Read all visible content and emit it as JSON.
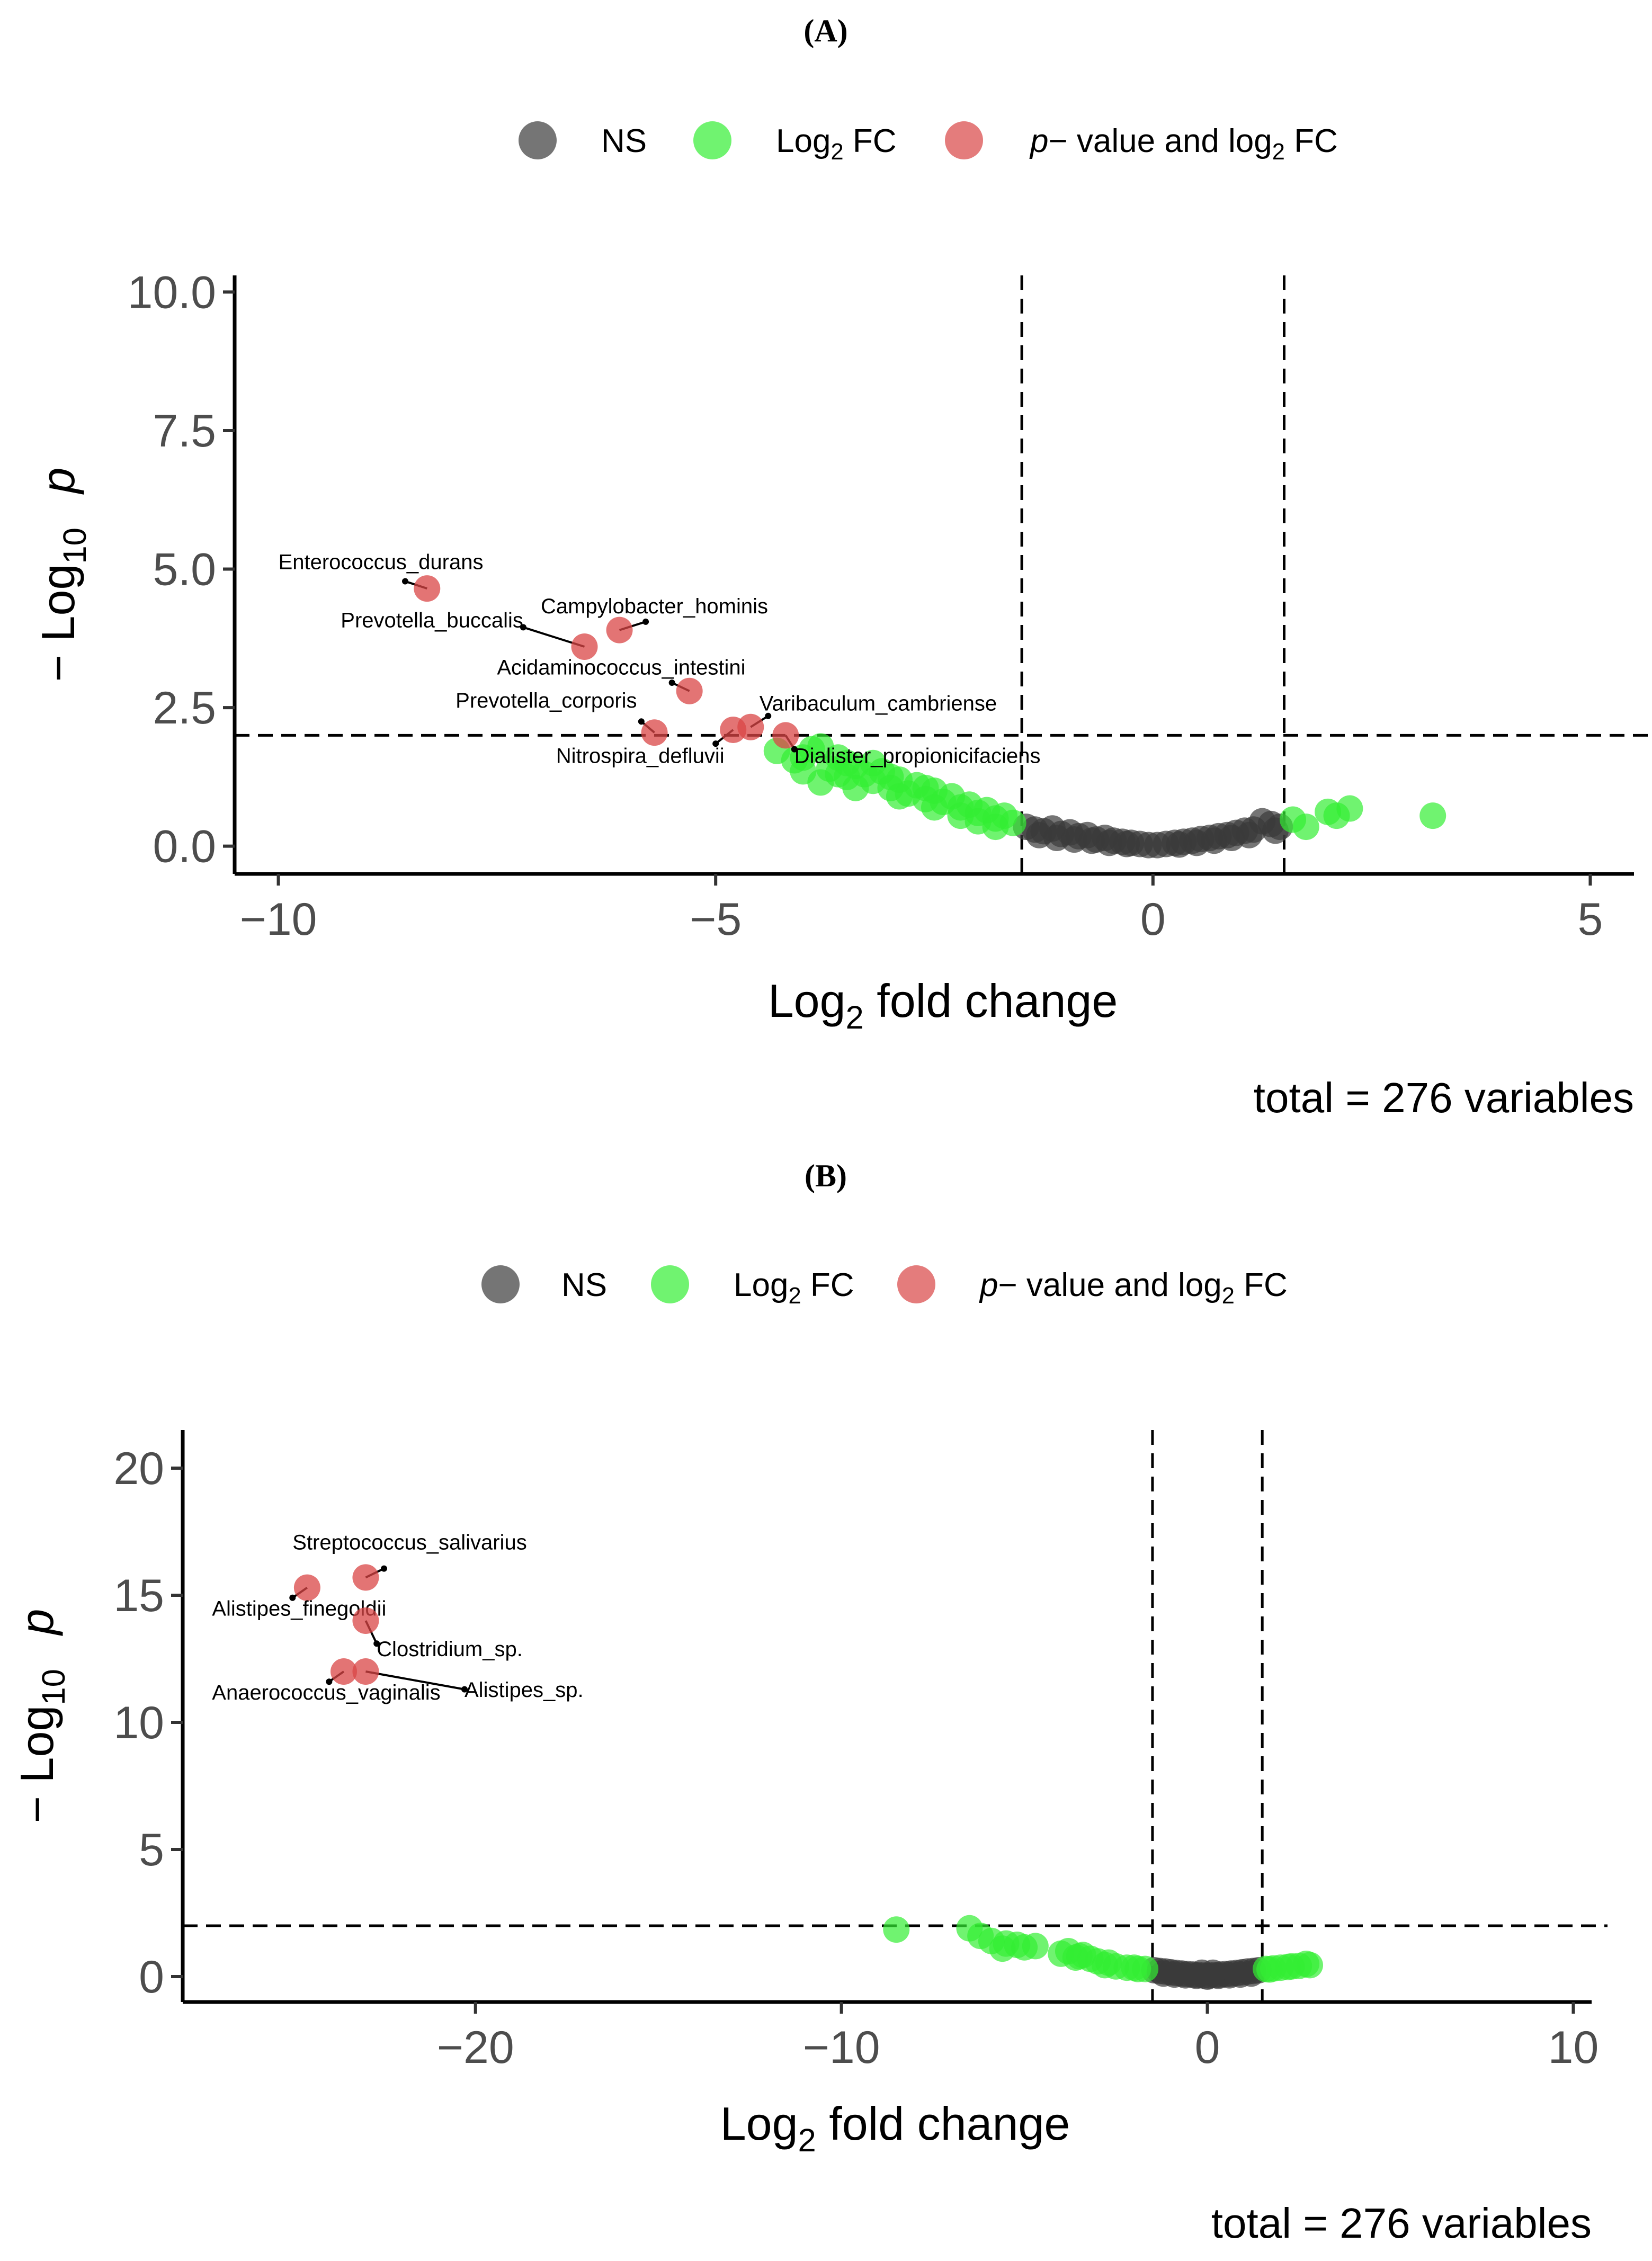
{
  "chart_data": [
    {
      "panel_label": "(A)",
      "type": "scatter",
      "subtype": "volcano",
      "legend": {
        "placement": "top",
        "entries": [
          {
            "key": "ns",
            "label": "NS",
            "color": "#3a3a3a"
          },
          {
            "key": "fc",
            "label": "Log",
            "sub": "2",
            "label_after": " FC",
            "color": "#33ee33"
          },
          {
            "key": "both",
            "label_italic": "p",
            "label": "− value and log",
            "sub": "2",
            "label_after": " FC",
            "color": "#d94545"
          }
        ]
      },
      "xlabel": "Log",
      "xlabel_sub": "2",
      "xlabel_after": " fold change",
      "ylabel": "− Log",
      "ylabel_sub": "10",
      "ylabel_after": "p",
      "xlim": [
        -10.5,
        5.5
      ],
      "ylim": [
        -0.5,
        10.3
      ],
      "xticks": [
        -10,
        -5,
        0,
        5
      ],
      "xtick_labels": [
        "−10",
        "−5",
        "0",
        "5"
      ],
      "yticks": [
        0,
        2.5,
        5,
        7.5,
        10
      ],
      "ytick_labels": [
        "0.0",
        "2.5",
        "5.0",
        "7.5",
        "10.0"
      ],
      "vlines": [
        -1.5,
        1.5
      ],
      "hline": 2,
      "caption": "total = 276 variables",
      "significant_points": [
        {
          "x": -8.3,
          "y": 4.65,
          "label": "Enterococcus_durans",
          "label_x": -10.0,
          "label_y": 5.0,
          "anchor": "start",
          "arrow_end_x": -8.55,
          "arrow_end_y": 4.78
        },
        {
          "x": -6.1,
          "y": 3.9,
          "label": "Campylobacter_hominis",
          "label_x": -7.0,
          "label_y": 4.2,
          "anchor": "start",
          "arrow_end_x": -5.8,
          "arrow_end_y": 4.05
        },
        {
          "x": -6.5,
          "y": 3.6,
          "label": "Prevotella_buccalis",
          "label_x": -7.2,
          "label_y": 3.95,
          "anchor": "end",
          "arrow_end_x": -7.2,
          "arrow_end_y": 3.95
        },
        {
          "x": -5.3,
          "y": 2.8,
          "label": "Acidaminococcus_intestini",
          "label_x": -7.5,
          "label_y": 3.1,
          "anchor": "start",
          "arrow_end_x": -5.5,
          "arrow_end_y": 2.95
        },
        {
          "x": -5.7,
          "y": 2.05,
          "label": "Prevotella_corporis",
          "label_x": -5.9,
          "label_y": 2.5,
          "anchor": "end",
          "arrow_end_x": -5.85,
          "arrow_end_y": 2.25
        },
        {
          "x": -4.8,
          "y": 2.1,
          "label": "Nitrospira_defluvii",
          "label_x": -4.9,
          "label_y": 1.5,
          "anchor": "end",
          "arrow_end_x": -5.0,
          "arrow_end_y": 1.85
        },
        {
          "x": -4.6,
          "y": 2.15,
          "label": "Varibaculum_cambriense",
          "label_x": -4.5,
          "label_y": 2.45,
          "anchor": "start",
          "arrow_end_x": -4.4,
          "arrow_end_y": 2.35
        },
        {
          "x": -4.2,
          "y": 2.0,
          "label": "Dialister_propionicifaciens",
          "label_x": -4.1,
          "label_y": 1.5,
          "anchor": "start",
          "arrow_end_x": -4.1,
          "arrow_end_y": 1.75
        }
      ],
      "fc_points": [
        [
          -4.3,
          1.72
        ],
        [
          -4.1,
          1.55
        ],
        [
          -4.0,
          1.35
        ],
        [
          -3.9,
          1.75
        ],
        [
          -3.8,
          1.8
        ],
        [
          -3.7,
          1.4
        ],
        [
          -3.6,
          1.6
        ],
        [
          -3.5,
          1.5
        ],
        [
          -3.5,
          1.25
        ],
        [
          -3.4,
          1.45
        ],
        [
          -3.3,
          1.3
        ],
        [
          -3.2,
          1.18
        ],
        [
          -3.1,
          1.35
        ],
        [
          -3.0,
          1.05
        ],
        [
          -2.9,
          1.2
        ],
        [
          -2.8,
          0.95
        ],
        [
          -2.7,
          1.1
        ],
        [
          -2.6,
          0.85
        ],
        [
          -2.5,
          1.0
        ],
        [
          -2.4,
          0.8
        ],
        [
          -2.3,
          0.9
        ],
        [
          -2.2,
          0.7
        ],
        [
          -2.1,
          0.75
        ],
        [
          -2.0,
          0.6
        ],
        [
          -1.9,
          0.65
        ],
        [
          -1.8,
          0.5
        ],
        [
          -1.7,
          0.55
        ],
        [
          -1.6,
          0.42
        ],
        [
          -3.8,
          1.15
        ],
        [
          -3.4,
          1.05
        ],
        [
          -2.9,
          0.9
        ],
        [
          -2.5,
          0.7
        ],
        [
          -2.0,
          0.45
        ],
        [
          -3.2,
          1.5
        ],
        [
          -2.6,
          1.05
        ],
        [
          -1.8,
          0.35
        ],
        [
          -4.0,
          1.6
        ],
        [
          -3.6,
          1.3
        ],
        [
          -3.0,
          1.25
        ],
        [
          -2.2,
          0.55
        ],
        [
          1.6,
          0.48
        ],
        [
          1.75,
          0.35
        ],
        [
          2.0,
          0.62
        ],
        [
          2.1,
          0.55
        ],
        [
          2.25,
          0.68
        ],
        [
          3.2,
          0.55
        ]
      ],
      "ns_points": [
        [
          -1.45,
          0.35
        ],
        [
          -1.35,
          0.3
        ],
        [
          -1.25,
          0.27
        ],
        [
          -1.15,
          0.32
        ],
        [
          -1.05,
          0.22
        ],
        [
          -0.95,
          0.25
        ],
        [
          -0.85,
          0.18
        ],
        [
          -0.75,
          0.2
        ],
        [
          -0.65,
          0.12
        ],
        [
          -0.55,
          0.15
        ],
        [
          -0.45,
          0.1
        ],
        [
          -0.35,
          0.08
        ],
        [
          -0.25,
          0.06
        ],
        [
          -0.15,
          0.04
        ],
        [
          -0.05,
          0.02
        ],
        [
          0.05,
          0.02
        ],
        [
          0.15,
          0.04
        ],
        [
          0.25,
          0.06
        ],
        [
          0.35,
          0.08
        ],
        [
          0.45,
          0.1
        ],
        [
          0.55,
          0.13
        ],
        [
          0.65,
          0.15
        ],
        [
          0.75,
          0.18
        ],
        [
          0.85,
          0.2
        ],
        [
          0.95,
          0.24
        ],
        [
          1.05,
          0.28
        ],
        [
          1.15,
          0.3
        ],
        [
          1.25,
          0.45
        ],
        [
          1.35,
          0.4
        ],
        [
          1.45,
          0.35
        ],
        [
          -1.3,
          0.2
        ],
        [
          -1.1,
          0.15
        ],
        [
          -0.9,
          0.12
        ],
        [
          -0.7,
          0.1
        ],
        [
          -0.5,
          0.06
        ],
        [
          -0.3,
          0.04
        ],
        [
          0.3,
          0.03
        ],
        [
          0.5,
          0.06
        ],
        [
          0.7,
          0.1
        ],
        [
          0.9,
          0.15
        ],
        [
          1.1,
          0.2
        ],
        [
          1.4,
          0.28
        ]
      ]
    },
    {
      "panel_label": "(B)",
      "type": "scatter",
      "subtype": "volcano",
      "legend": {
        "placement": "top",
        "entries": [
          {
            "key": "ns",
            "label": "NS",
            "color": "#3a3a3a"
          },
          {
            "key": "fc",
            "label": "Log",
            "sub": "2",
            "label_after": " FC",
            "color": "#33ee33"
          },
          {
            "key": "both",
            "label_italic": "p",
            "label": "− value and log",
            "sub": "2",
            "label_after": " FC",
            "color": "#d94545"
          }
        ]
      },
      "xlabel": "Log",
      "xlabel_sub": "2",
      "xlabel_after": " fold change",
      "ylabel": "− Log",
      "ylabel_sub": "10",
      "ylabel_after": "p",
      "xlim": [
        -28,
        10.5
      ],
      "ylim": [
        -1,
        21.5
      ],
      "xticks": [
        -20,
        -10,
        0,
        10
      ],
      "xtick_labels": [
        "−20",
        "−10",
        "0",
        "10"
      ],
      "yticks": [
        0,
        5,
        10,
        15,
        20
      ],
      "ytick_labels": [
        "0",
        "5",
        "10",
        "15",
        "20"
      ],
      "vlines": [
        -1.5,
        1.5
      ],
      "hline": 2,
      "caption": "total = 276 variables",
      "significant_points": [
        {
          "x": -23.0,
          "y": 15.7,
          "label": "Streptococcus_salivarius",
          "label_x": -25.0,
          "label_y": 16.8,
          "anchor": "start",
          "arrow_end_x": -22.5,
          "arrow_end_y": 16.05
        },
        {
          "x": -24.6,
          "y": 15.3,
          "label": "Alistipes_finegoldii",
          "label_x": -27.2,
          "label_y": 14.2,
          "anchor": "start",
          "arrow_end_x": -25.0,
          "arrow_end_y": 14.9
        },
        {
          "x": -23.0,
          "y": 14.0,
          "label": "Clostridium_sp.",
          "label_x": -22.7,
          "label_y": 12.6,
          "anchor": "start",
          "arrow_end_x": -22.7,
          "arrow_end_y": 13.1
        },
        {
          "x": -23.6,
          "y": 12.0,
          "label": "Anaerococcus_vaginalis",
          "label_x": -27.2,
          "label_y": 10.9,
          "anchor": "start",
          "arrow_end_x": -24.0,
          "arrow_end_y": 11.6
        },
        {
          "x": -23.0,
          "y": 12.0,
          "label": "Alistipes_sp.",
          "label_x": -20.3,
          "label_y": 11.0,
          "anchor": "start",
          "arrow_end_x": -20.3,
          "arrow_end_y": 11.3
        }
      ],
      "fc_points": [
        [
          -8.5,
          1.85
        ],
        [
          -6.5,
          1.9
        ],
        [
          -6.2,
          1.6
        ],
        [
          -5.9,
          1.4
        ],
        [
          -5.6,
          1.1
        ],
        [
          -5.5,
          1.3
        ],
        [
          -5.2,
          1.25
        ],
        [
          -5.0,
          1.15
        ],
        [
          -4.7,
          1.2
        ],
        [
          -4.0,
          0.9
        ],
        [
          -3.8,
          1.0
        ],
        [
          -3.6,
          0.75
        ],
        [
          -3.4,
          0.85
        ],
        [
          -3.2,
          0.7
        ],
        [
          -3.0,
          0.6
        ],
        [
          -2.8,
          0.45
        ],
        [
          -2.5,
          0.4
        ],
        [
          -2.2,
          0.35
        ],
        [
          -1.9,
          0.3
        ],
        [
          -1.7,
          0.3
        ],
        [
          -3.5,
          0.8
        ],
        [
          -2.7,
          0.55
        ],
        [
          -2.0,
          0.35
        ],
        [
          1.6,
          0.3
        ],
        [
          1.8,
          0.32
        ],
        [
          2.0,
          0.35
        ],
        [
          2.2,
          0.38
        ],
        [
          2.5,
          0.42
        ],
        [
          2.7,
          0.5
        ],
        [
          2.8,
          0.45
        ],
        [
          1.7,
          0.28
        ],
        [
          2.3,
          0.4
        ]
      ],
      "ns_points": [
        [
          -1.45,
          0.25
        ],
        [
          -1.3,
          0.22
        ],
        [
          -1.15,
          0.2
        ],
        [
          -1.0,
          0.17
        ],
        [
          -0.85,
          0.14
        ],
        [
          -0.7,
          0.12
        ],
        [
          -0.55,
          0.1
        ],
        [
          -0.4,
          0.08
        ],
        [
          -0.25,
          0.06
        ],
        [
          -0.1,
          0.04
        ],
        [
          0.05,
          0.04
        ],
        [
          0.2,
          0.06
        ],
        [
          0.35,
          0.08
        ],
        [
          0.5,
          0.1
        ],
        [
          0.65,
          0.12
        ],
        [
          0.8,
          0.14
        ],
        [
          0.95,
          0.17
        ],
        [
          1.1,
          0.2
        ],
        [
          1.25,
          0.22
        ],
        [
          1.4,
          0.25
        ],
        [
          -1.2,
          0.12
        ],
        [
          -0.9,
          0.08
        ],
        [
          -0.6,
          0.05
        ],
        [
          -0.3,
          0.03
        ],
        [
          0.0,
          0.0
        ],
        [
          0.3,
          0.03
        ],
        [
          0.6,
          0.05
        ],
        [
          0.9,
          0.08
        ],
        [
          1.2,
          0.12
        ],
        [
          -0.15,
          0.15
        ],
        [
          0.15,
          0.15
        ]
      ]
    }
  ]
}
